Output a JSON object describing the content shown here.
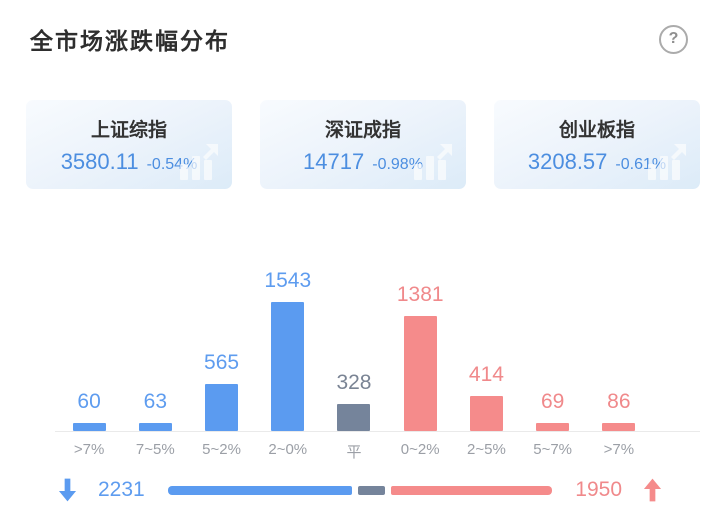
{
  "page": {
    "title": "全市场涨跌幅分布",
    "help_label": "?"
  },
  "colors": {
    "down": "#5b9bf0",
    "flat": "#75849b",
    "up": "#f58b8b",
    "down_label": "#5e9cef",
    "flat_label": "#7a8494",
    "up_label": "#f0898b",
    "index_text": "#4c8ee0",
    "axis_line": "#eaeaea",
    "category_label": "#9b9fa6"
  },
  "indices": [
    {
      "name": "上证综指",
      "value": "3580.11",
      "change": "-0.54%"
    },
    {
      "name": "深证成指",
      "value": "14717",
      "change": "-0.98%"
    },
    {
      "name": "创业板指",
      "value": "3208.57",
      "change": "-0.61%"
    }
  ],
  "chart_data": {
    "type": "bar",
    "title": "全市场涨跌幅分布",
    "categories": [
      ">7%",
      "7~5%",
      "5~2%",
      "2~0%",
      "平",
      "0~2%",
      "2~5%",
      "5~7%",
      ">7%"
    ],
    "values": [
      60,
      63,
      565,
      1543,
      328,
      1381,
      414,
      69,
      86
    ],
    "bar_roles": [
      "down",
      "down",
      "down",
      "down",
      "flat",
      "up",
      "up",
      "up",
      "up"
    ],
    "xlabel": "",
    "ylabel": "",
    "ylim": [
      0,
      1600
    ],
    "grid": false,
    "value_labels": true,
    "legend": false
  },
  "summary": {
    "down_count": 2231,
    "flat_count": 328,
    "up_count": 1950,
    "down_display": "2231",
    "up_display": "1950"
  }
}
